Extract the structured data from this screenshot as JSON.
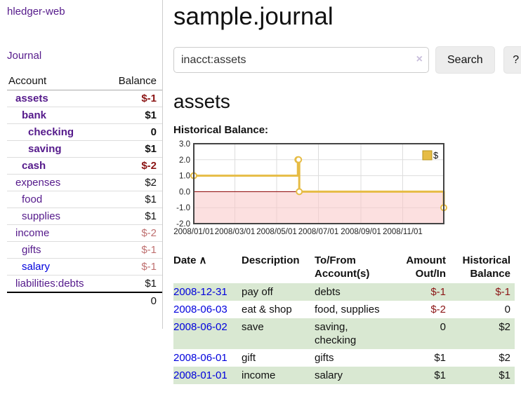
{
  "app": {
    "title": "hledger-web"
  },
  "sidebar": {
    "journal_link": "Journal",
    "accounts_header": {
      "account": "Account",
      "balance": "Balance"
    },
    "accounts": [
      {
        "name": "assets",
        "level": 1,
        "bold": true,
        "blue": false,
        "balance": "$-1",
        "balance_class": "neg"
      },
      {
        "name": "bank",
        "level": 2,
        "bold": true,
        "blue": false,
        "balance": "$1",
        "balance_class": "pos"
      },
      {
        "name": "checking",
        "level": 3,
        "bold": true,
        "blue": false,
        "balance": "0",
        "balance_class": "pos"
      },
      {
        "name": "saving",
        "level": 3,
        "bold": true,
        "blue": false,
        "balance": "$1",
        "balance_class": "pos"
      },
      {
        "name": "cash",
        "level": 2,
        "bold": true,
        "blue": false,
        "balance": "$-2",
        "balance_class": "neg"
      },
      {
        "name": "expenses",
        "level": 1,
        "bold": false,
        "blue": false,
        "balance": "$2",
        "balance_class": "pos"
      },
      {
        "name": "food",
        "level": 2,
        "bold": false,
        "blue": false,
        "balance": "$1",
        "balance_class": "pos"
      },
      {
        "name": "supplies",
        "level": 2,
        "bold": false,
        "blue": false,
        "balance": "$1",
        "balance_class": "pos"
      },
      {
        "name": "income",
        "level": 1,
        "bold": false,
        "blue": false,
        "balance": "$-2",
        "balance_class": "neg-light"
      },
      {
        "name": "gifts",
        "level": 2,
        "bold": false,
        "blue": false,
        "balance": "$-1",
        "balance_class": "neg-light"
      },
      {
        "name": "salary",
        "level": 2,
        "bold": false,
        "blue": true,
        "balance": "$-1",
        "balance_class": "neg-light"
      },
      {
        "name": "liabilities:debts",
        "level": 1,
        "bold": false,
        "blue": false,
        "balance": "$1",
        "balance_class": "pos"
      }
    ],
    "total": "0"
  },
  "main": {
    "title": "sample.journal",
    "account_heading": "assets"
  },
  "search": {
    "value": "inacct:assets",
    "clear_icon": "×",
    "button_label": "Search",
    "help_label": "?"
  },
  "chart_data": {
    "type": "line",
    "step": true,
    "title": "Historical Balance:",
    "series": [
      {
        "name": "$",
        "points": [
          [
            "2008-01-01",
            1
          ],
          [
            "2008-06-01",
            2
          ],
          [
            "2008-06-02",
            2
          ],
          [
            "2008-06-03",
            0
          ],
          [
            "2008-12-31",
            -1
          ]
        ]
      }
    ],
    "x_range": [
      "2008-01-01",
      "2008-12-31"
    ],
    "x_ticks": [
      "2008/01/01",
      "2008/03/01",
      "2008/05/01",
      "2008/07/01",
      "2008/09/01",
      "2008/11/01"
    ],
    "y_ticks": [
      3.0,
      2.0,
      1.0,
      0.0,
      -1.0,
      -2.0
    ],
    "ylim": [
      -2,
      3
    ],
    "legend": {
      "label": "$",
      "position": "top-right"
    },
    "grid": true,
    "colors": {
      "line": "#e6bc45",
      "marker_fill": "#ffffff",
      "legend_border": "#b8941c",
      "negative_region": "#f9c6c6",
      "zero_line": "#8b0000",
      "grid": "#dddddd",
      "border": "#444444",
      "tick_text": "#222222"
    }
  },
  "register": {
    "headers": {
      "date": "Date",
      "description": "Description",
      "accounts": "To/From Account(s)",
      "amount": "Amount Out/In",
      "balance": "Historical Balance"
    },
    "sort_icon": "∧",
    "rows": [
      {
        "date": "2008-12-31",
        "description": "pay off",
        "accounts": "debts",
        "amount": "$-1",
        "amount_negative": true,
        "balance": "$-1",
        "balance_negative": true
      },
      {
        "date": "2008-06-03",
        "description": "eat & shop",
        "accounts": "food, supplies",
        "amount": "$-2",
        "amount_negative": true,
        "balance": "0",
        "balance_negative": false
      },
      {
        "date": "2008-06-02",
        "description": "save",
        "accounts": "saving, checking",
        "amount": "0",
        "amount_negative": false,
        "balance": "$2",
        "balance_negative": false
      },
      {
        "date": "2008-06-01",
        "description": "gift",
        "accounts": "gifts",
        "amount": "$1",
        "amount_negative": false,
        "balance": "$2",
        "balance_negative": false
      },
      {
        "date": "2008-01-01",
        "description": "income",
        "accounts": "salary",
        "amount": "$1",
        "amount_negative": false,
        "balance": "$1",
        "balance_negative": false
      }
    ]
  }
}
